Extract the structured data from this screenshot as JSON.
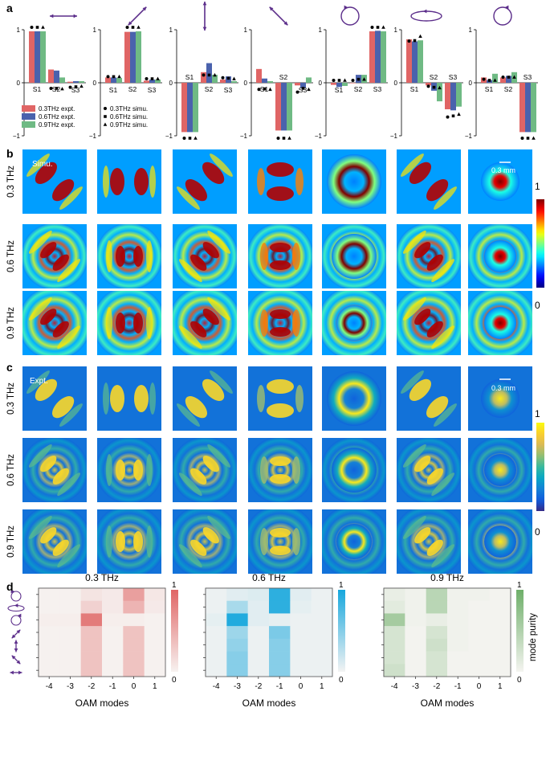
{
  "panel_labels": {
    "a": "a",
    "b": "b",
    "c": "c",
    "d": "d"
  },
  "panel_a": {
    "ticks": {
      "one": "1",
      "zero": "0",
      "minus_one": "−1"
    },
    "x_labels": [
      "S1",
      "S2",
      "S3"
    ],
    "legend": [
      {
        "text": "0.3THz expt.",
        "color": "#e06565"
      },
      {
        "text": "0.6THz expt.",
        "color": "#4a62ad"
      },
      {
        "text": "0.9THz expt.",
        "color": "#6fba84"
      },
      {
        "text": "0.3THz simu.",
        "marker": "circle"
      },
      {
        "text": "0.6THz simu.",
        "marker": "square"
      },
      {
        "text": "0.9THz simu.",
        "marker": "triangle"
      }
    ],
    "polarization_icons": [
      "double-arrow-horizontal-icon",
      "double-arrow-diagonal-icon",
      "double-arrow-vertical-icon",
      "double-arrow-antidiagonal-icon",
      "circle-arrow-icon",
      "ellipse-arrow-icon",
      "circle-arrow-icon"
    ]
  },
  "chart_data": [
    {
      "type": "bar",
      "categories": [
        "S1",
        "S2",
        "S3"
      ],
      "series": [
        {
          "name": "0.3THz expt.",
          "values": [
            0.97,
            0.25,
            0.02
          ]
        },
        {
          "name": "0.6THz expt.",
          "values": [
            0.97,
            0.23,
            0.03
          ]
        },
        {
          "name": "0.9THz expt.",
          "values": [
            0.97,
            0.1,
            0.03
          ]
        }
      ],
      "simu": [
        [
          1.0,
          -0.06,
          -0.04
        ],
        [
          1.0,
          -0.06,
          -0.03
        ],
        [
          1.0,
          -0.07,
          -0.02
        ]
      ],
      "ylim": [
        -1,
        1
      ]
    },
    {
      "type": "bar",
      "categories": [
        "S1",
        "S2",
        "S3"
      ],
      "series": [
        {
          "name": "0.3THz expt.",
          "values": [
            0.1,
            0.96,
            0.04
          ]
        },
        {
          "name": "0.6THz expt.",
          "values": [
            0.1,
            0.96,
            0.06
          ]
        },
        {
          "name": "0.9THz expt.",
          "values": [
            0.09,
            0.97,
            0.06
          ]
        }
      ],
      "simu": [
        [
          0.07,
          1.0,
          0.03
        ],
        [
          0.07,
          1.0,
          0.03
        ],
        [
          0.07,
          1.0,
          0.03
        ]
      ],
      "ylim": [
        -1,
        1
      ]
    },
    {
      "type": "bar",
      "categories": [
        "S1",
        "S2",
        "S3"
      ],
      "series": [
        {
          "name": "0.3THz expt.",
          "values": [
            -0.93,
            0.2,
            0.06
          ]
        },
        {
          "name": "0.6THz expt.",
          "values": [
            -0.93,
            0.37,
            0.12
          ]
        },
        {
          "name": "0.9THz expt.",
          "values": [
            -0.93,
            0.15,
            0.03
          ]
        }
      ],
      "simu": [
        [
          -1.0,
          0.1,
          0.05
        ],
        [
          -1.0,
          0.1,
          0.04
        ],
        [
          -1.0,
          0.1,
          0.03
        ]
      ],
      "ylim": [
        -1,
        1
      ]
    },
    {
      "type": "bar",
      "categories": [
        "S1",
        "S2",
        "S3"
      ],
      "series": [
        {
          "name": "0.3THz expt.",
          "values": [
            0.26,
            -0.9,
            -0.05
          ]
        },
        {
          "name": "0.6THz expt.",
          "values": [
            0.08,
            -0.9,
            -0.1
          ]
        },
        {
          "name": "0.9THz expt.",
          "values": [
            0.03,
            -0.9,
            0.1
          ]
        }
      ],
      "simu": [
        [
          -0.08,
          -1.0,
          -0.13
        ],
        [
          -0.07,
          -1.0,
          -0.06
        ],
        [
          -0.08,
          -1.0,
          -0.08
        ]
      ],
      "ylim": [
        -1,
        1
      ]
    },
    {
      "type": "bar",
      "categories": [
        "S1",
        "S2",
        "S3"
      ],
      "series": [
        {
          "name": "0.3THz expt.",
          "values": [
            -0.04,
            0.0,
            0.97
          ]
        },
        {
          "name": "0.6THz expt.",
          "values": [
            -0.08,
            0.15,
            0.98
          ]
        },
        {
          "name": "0.9THz expt.",
          "values": [
            -0.06,
            0.15,
            0.97
          ]
        }
      ],
      "simu": [
        [
          0.0,
          0.0,
          1.0
        ],
        [
          0.0,
          0.02,
          1.0
        ],
        [
          0.0,
          0.02,
          1.0
        ]
      ],
      "ylim": [
        -1,
        1
      ]
    },
    {
      "type": "bar",
      "categories": [
        "S1",
        "S2",
        "S3"
      ],
      "series": [
        {
          "name": "0.3THz expt.",
          "values": [
            0.82,
            -0.05,
            -0.5
          ]
        },
        {
          "name": "0.6THz expt.",
          "values": [
            0.78,
            -0.15,
            -0.52
          ]
        },
        {
          "name": "0.9THz expt.",
          "values": [
            0.8,
            -0.35,
            -0.45
          ]
        }
      ],
      "simu": [
        [
          0.74,
          -0.02,
          -0.6
        ],
        [
          0.75,
          -0.04,
          -0.58
        ],
        [
          0.83,
          -0.05,
          -0.55
        ]
      ],
      "ylim": [
        -1,
        1
      ]
    },
    {
      "type": "bar",
      "categories": [
        "S1",
        "S2",
        "S3"
      ],
      "series": [
        {
          "name": "0.3THz expt.",
          "values": [
            0.1,
            0.1,
            -0.93
          ]
        },
        {
          "name": "0.6THz expt.",
          "values": [
            0.05,
            0.13,
            -0.93
          ]
        },
        {
          "name": "0.9THz expt.",
          "values": [
            0.17,
            0.2,
            -0.93
          ]
        }
      ],
      "simu": [
        [
          0.02,
          0.06,
          -1.0
        ],
        [
          0.0,
          0.06,
          -1.0
        ],
        [
          0.0,
          0.06,
          -1.0
        ]
      ],
      "ylim": [
        -1,
        1
      ]
    },
    {
      "type": "heatmap",
      "title": "0.3 THz",
      "xlabel": "OAM modes",
      "x": [
        "-4",
        "-3",
        "-2",
        "-1",
        "0",
        "1"
      ],
      "rows": [
        [
          0.03,
          0.03,
          0.12,
          0.08,
          0.6,
          0.1
        ],
        [
          0.03,
          0.03,
          0.25,
          0.08,
          0.45,
          0.08
        ],
        [
          0.05,
          0.05,
          0.85,
          0.05,
          0.05,
          0.03
        ],
        [
          0.03,
          0.03,
          0.35,
          0.03,
          0.35,
          0.03
        ],
        [
          0.03,
          0.03,
          0.35,
          0.03,
          0.35,
          0.03
        ],
        [
          0.03,
          0.03,
          0.35,
          0.03,
          0.35,
          0.03
        ],
        [
          0.03,
          0.03,
          0.35,
          0.03,
          0.35,
          0.03
        ]
      ]
    },
    {
      "type": "heatmap",
      "title": "0.6 THz",
      "xlabel": "OAM modes",
      "x": [
        "-4",
        "-3",
        "-2",
        "-1",
        "0",
        "1"
      ],
      "rows": [
        [
          0.05,
          0.1,
          0.12,
          0.9,
          0.1,
          0.05
        ],
        [
          0.05,
          0.35,
          0.1,
          0.9,
          0.08,
          0.05
        ],
        [
          0.08,
          0.95,
          0.1,
          0.08,
          0.05,
          0.05
        ],
        [
          0.05,
          0.4,
          0.05,
          0.55,
          0.05,
          0.05
        ],
        [
          0.05,
          0.45,
          0.05,
          0.5,
          0.05,
          0.05
        ],
        [
          0.05,
          0.5,
          0.05,
          0.5,
          0.05,
          0.05
        ],
        [
          0.05,
          0.5,
          0.05,
          0.5,
          0.05,
          0.05
        ]
      ]
    },
    {
      "type": "heatmap",
      "title": "0.9 THz",
      "xlabel": "OAM modes",
      "x": [
        "-4",
        "-3",
        "-2",
        "-1",
        "0",
        "1"
      ],
      "rows": [
        [
          0.1,
          0.05,
          0.45,
          0.05,
          0.05,
          0.03
        ],
        [
          0.15,
          0.05,
          0.45,
          0.05,
          0.03,
          0.03
        ],
        [
          0.6,
          0.05,
          0.1,
          0.05,
          0.03,
          0.03
        ],
        [
          0.25,
          0.03,
          0.25,
          0.05,
          0.03,
          0.03
        ],
        [
          0.25,
          0.03,
          0.3,
          0.05,
          0.03,
          0.03
        ],
        [
          0.25,
          0.03,
          0.25,
          0.03,
          0.03,
          0.03
        ],
        [
          0.3,
          0.03,
          0.25,
          0.03,
          0.03,
          0.03
        ]
      ]
    }
  ],
  "panel_b": {
    "corner_label": "Simu.",
    "scale_label": "0.3 mm",
    "rows": [
      "0.3 THz",
      "0.6 THz",
      "0.9 THz"
    ],
    "cbar_max": "1",
    "cbar_min": "0"
  },
  "panel_c": {
    "corner_label": "Expt.",
    "scale_label": "0.3 mm",
    "rows": [
      "0.3 THz",
      "0.6 THz",
      "0.9 THz"
    ],
    "cbar_max": "1",
    "cbar_min": "0"
  },
  "panel_d": {
    "titles": [
      "0.3 THz",
      "0.6 THz",
      "0.9 THz"
    ],
    "xlabel": "OAM modes",
    "x_ticks": [
      "-4",
      "-3",
      "-2",
      "-1",
      "0",
      "1"
    ],
    "cbar_max": "1",
    "cbar_min": "0",
    "cbar_label": "mode purity"
  },
  "colors": {
    "red": "#e06565",
    "blue": "#4a62ad",
    "green": "#6fba84",
    "arrow": "#5b2d8a"
  }
}
